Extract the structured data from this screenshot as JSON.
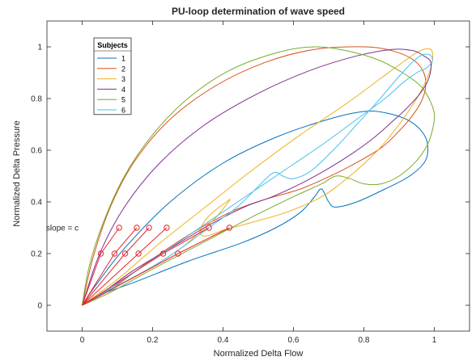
{
  "chart_data": {
    "type": "line",
    "title": "PU-loop determination of wave speed",
    "xlabel": "Normalized Delta Flow",
    "ylabel": "Normalized Delta Pressure",
    "xlim": [
      -0.1,
      1.1
    ],
    "ylim": [
      -0.1,
      1.1
    ],
    "xticks": [
      0,
      0.2,
      0.4,
      0.6,
      0.8,
      1
    ],
    "yticks": [
      0,
      0.2,
      0.4,
      0.6,
      0.8,
      1
    ],
    "xtick_labels": [
      "0",
      "0.2",
      "0.4",
      "0.6",
      "0.8",
      "1"
    ],
    "ytick_labels": [
      "0",
      "0.2",
      "0.4",
      "0.6",
      "0.8",
      "1"
    ],
    "grid": false,
    "legend": {
      "title": "Subjects",
      "placement": "top-left"
    },
    "annotation": {
      "text": "slope = c",
      "x": -0.01,
      "y": 0.3
    },
    "series": [
      {
        "name": "1",
        "color": "#0072BD",
        "points": [
          [
            0.0,
            0.0
          ],
          [
            0.05,
            0.04
          ],
          [
            0.15,
            0.09
          ],
          [
            0.3,
            0.17
          ],
          [
            0.45,
            0.24
          ],
          [
            0.55,
            0.3
          ],
          [
            0.62,
            0.36
          ],
          [
            0.66,
            0.42
          ],
          [
            0.68,
            0.45
          ],
          [
            0.7,
            0.4
          ],
          [
            0.72,
            0.38
          ],
          [
            0.78,
            0.4
          ],
          [
            0.86,
            0.45
          ],
          [
            0.93,
            0.5
          ],
          [
            0.975,
            0.56
          ],
          [
            0.98,
            0.63
          ],
          [
            0.96,
            0.68
          ],
          [
            0.92,
            0.72
          ],
          [
            0.86,
            0.745
          ],
          [
            0.8,
            0.75
          ],
          [
            0.7,
            0.72
          ],
          [
            0.55,
            0.65
          ],
          [
            0.4,
            0.55
          ],
          [
            0.25,
            0.4
          ],
          [
            0.12,
            0.22
          ],
          [
            0.04,
            0.08
          ],
          [
            0.0,
            0.0
          ]
        ]
      },
      {
        "name": "2",
        "color": "#D95319",
        "points": [
          [
            0.0,
            0.0
          ],
          [
            0.03,
            0.18
          ],
          [
            0.08,
            0.38
          ],
          [
            0.15,
            0.56
          ],
          [
            0.25,
            0.72
          ],
          [
            0.38,
            0.85
          ],
          [
            0.52,
            0.94
          ],
          [
            0.66,
            0.99
          ],
          [
            0.8,
            1.0
          ],
          [
            0.88,
            0.985
          ],
          [
            0.94,
            0.95
          ],
          [
            0.97,
            0.9
          ],
          [
            0.975,
            0.84
          ],
          [
            0.96,
            0.78
          ],
          [
            0.93,
            0.72
          ],
          [
            0.89,
            0.66
          ],
          [
            0.85,
            0.61
          ],
          [
            0.79,
            0.56
          ],
          [
            0.72,
            0.51
          ],
          [
            0.62,
            0.45
          ],
          [
            0.52,
            0.41
          ],
          [
            0.42,
            0.36
          ],
          [
            0.3,
            0.27
          ],
          [
            0.18,
            0.16
          ],
          [
            0.08,
            0.06
          ],
          [
            0.0,
            0.0
          ]
        ]
      },
      {
        "name": "3",
        "color": "#EDB120",
        "points": [
          [
            0.0,
            0.0
          ],
          [
            0.05,
            0.04
          ],
          [
            0.12,
            0.09
          ],
          [
            0.2,
            0.15
          ],
          [
            0.28,
            0.22
          ],
          [
            0.34,
            0.29
          ],
          [
            0.38,
            0.34
          ],
          [
            0.41,
            0.39
          ],
          [
            0.42,
            0.41
          ],
          [
            0.41,
            0.4
          ],
          [
            0.38,
            0.37
          ],
          [
            0.35,
            0.33
          ],
          [
            0.335,
            0.29
          ],
          [
            0.34,
            0.27
          ],
          [
            0.36,
            0.27
          ],
          [
            0.4,
            0.29
          ],
          [
            0.48,
            0.32
          ],
          [
            0.58,
            0.36
          ],
          [
            0.68,
            0.42
          ],
          [
            0.76,
            0.5
          ],
          [
            0.84,
            0.6
          ],
          [
            0.9,
            0.7
          ],
          [
            0.95,
            0.8
          ],
          [
            0.98,
            0.88
          ],
          [
            0.995,
            0.95
          ],
          [
            0.99,
            0.99
          ],
          [
            0.96,
            0.985
          ],
          [
            0.92,
            0.95
          ],
          [
            0.85,
            0.88
          ],
          [
            0.75,
            0.78
          ],
          [
            0.62,
            0.66
          ],
          [
            0.48,
            0.52
          ],
          [
            0.35,
            0.38
          ],
          [
            0.22,
            0.24
          ],
          [
            0.1,
            0.1
          ],
          [
            0.0,
            0.0
          ]
        ]
      },
      {
        "name": "4",
        "color": "#7E2F8E",
        "points": [
          [
            0.0,
            0.0
          ],
          [
            0.05,
            0.2
          ],
          [
            0.12,
            0.38
          ],
          [
            0.22,
            0.55
          ],
          [
            0.35,
            0.7
          ],
          [
            0.5,
            0.82
          ],
          [
            0.65,
            0.91
          ],
          [
            0.78,
            0.965
          ],
          [
            0.88,
            0.99
          ],
          [
            0.94,
            0.985
          ],
          [
            0.97,
            0.965
          ],
          [
            0.99,
            0.94
          ],
          [
            0.985,
            0.88
          ],
          [
            0.96,
            0.82
          ],
          [
            0.92,
            0.76
          ],
          [
            0.88,
            0.71
          ],
          [
            0.83,
            0.65
          ],
          [
            0.77,
            0.59
          ],
          [
            0.7,
            0.53
          ],
          [
            0.62,
            0.47
          ],
          [
            0.54,
            0.42
          ],
          [
            0.46,
            0.38
          ],
          [
            0.36,
            0.31
          ],
          [
            0.25,
            0.22
          ],
          [
            0.14,
            0.13
          ],
          [
            0.06,
            0.05
          ],
          [
            0.0,
            0.0
          ]
        ]
      },
      {
        "name": "5",
        "color": "#77AC30",
        "points": [
          [
            0.0,
            0.0
          ],
          [
            0.02,
            0.15
          ],
          [
            0.06,
            0.32
          ],
          [
            0.12,
            0.5
          ],
          [
            0.2,
            0.66
          ],
          [
            0.3,
            0.8
          ],
          [
            0.42,
            0.91
          ],
          [
            0.56,
            0.98
          ],
          [
            0.66,
            1.0
          ],
          [
            0.75,
            0.985
          ],
          [
            0.84,
            0.95
          ],
          [
            0.91,
            0.9
          ],
          [
            0.96,
            0.85
          ],
          [
            0.985,
            0.8
          ],
          [
            1.0,
            0.74
          ],
          [
            0.995,
            0.68
          ],
          [
            0.98,
            0.62
          ],
          [
            0.95,
            0.56
          ],
          [
            0.9,
            0.5
          ],
          [
            0.85,
            0.47
          ],
          [
            0.8,
            0.47
          ],
          [
            0.76,
            0.49
          ],
          [
            0.72,
            0.5
          ],
          [
            0.68,
            0.47
          ],
          [
            0.6,
            0.42
          ],
          [
            0.48,
            0.34
          ],
          [
            0.34,
            0.24
          ],
          [
            0.2,
            0.14
          ],
          [
            0.08,
            0.05
          ],
          [
            0.0,
            0.0
          ]
        ]
      },
      {
        "name": "6",
        "color": "#4DBEEE",
        "points": [
          [
            0.0,
            0.0
          ],
          [
            0.05,
            0.04
          ],
          [
            0.12,
            0.09
          ],
          [
            0.2,
            0.15
          ],
          [
            0.28,
            0.22
          ],
          [
            0.36,
            0.3
          ],
          [
            0.44,
            0.38
          ],
          [
            0.5,
            0.46
          ],
          [
            0.53,
            0.5
          ],
          [
            0.55,
            0.515
          ],
          [
            0.57,
            0.5
          ],
          [
            0.6,
            0.49
          ],
          [
            0.65,
            0.52
          ],
          [
            0.72,
            0.61
          ],
          [
            0.78,
            0.7
          ],
          [
            0.84,
            0.79
          ],
          [
            0.89,
            0.87
          ],
          [
            0.93,
            0.93
          ],
          [
            0.96,
            0.965
          ],
          [
            0.985,
            0.97
          ],
          [
            0.995,
            0.95
          ],
          [
            0.98,
            0.92
          ],
          [
            0.95,
            0.9
          ],
          [
            0.91,
            0.86
          ],
          [
            0.86,
            0.8
          ],
          [
            0.78,
            0.72
          ],
          [
            0.68,
            0.62
          ],
          [
            0.55,
            0.5
          ],
          [
            0.42,
            0.38
          ],
          [
            0.28,
            0.25
          ],
          [
            0.14,
            0.12
          ],
          [
            0.04,
            0.03
          ],
          [
            0.0,
            0.0
          ]
        ]
      }
    ],
    "slope_lines": [
      {
        "color": "#E8262C",
        "x": [
          0.0,
          0.053,
          0.105
        ],
        "y": [
          0.0,
          0.2,
          0.3
        ]
      },
      {
        "color": "#E8262C",
        "x": [
          0.0,
          0.092,
          0.155
        ],
        "y": [
          0.0,
          0.2,
          0.3
        ]
      },
      {
        "color": "#E8262C",
        "x": [
          0.0,
          0.122,
          0.19
        ],
        "y": [
          0.0,
          0.2,
          0.3
        ]
      },
      {
        "color": "#E8262C",
        "x": [
          0.0,
          0.16,
          0.24
        ],
        "y": [
          0.0,
          0.2,
          0.3
        ]
      },
      {
        "color": "#E8262C",
        "x": [
          0.0,
          0.23,
          0.36
        ],
        "y": [
          0.0,
          0.2,
          0.3
        ]
      },
      {
        "color": "#E8262C",
        "x": [
          0.0,
          0.272,
          0.418
        ],
        "y": [
          0.0,
          0.2,
          0.3
        ]
      }
    ],
    "markers": {
      "color": "#E8262C",
      "points": [
        [
          0.053,
          0.2
        ],
        [
          0.092,
          0.2
        ],
        [
          0.122,
          0.2
        ],
        [
          0.16,
          0.2
        ],
        [
          0.23,
          0.2
        ],
        [
          0.272,
          0.2
        ],
        [
          0.105,
          0.3
        ],
        [
          0.155,
          0.3
        ],
        [
          0.19,
          0.3
        ],
        [
          0.24,
          0.3
        ],
        [
          0.36,
          0.3
        ],
        [
          0.418,
          0.3
        ]
      ]
    }
  }
}
